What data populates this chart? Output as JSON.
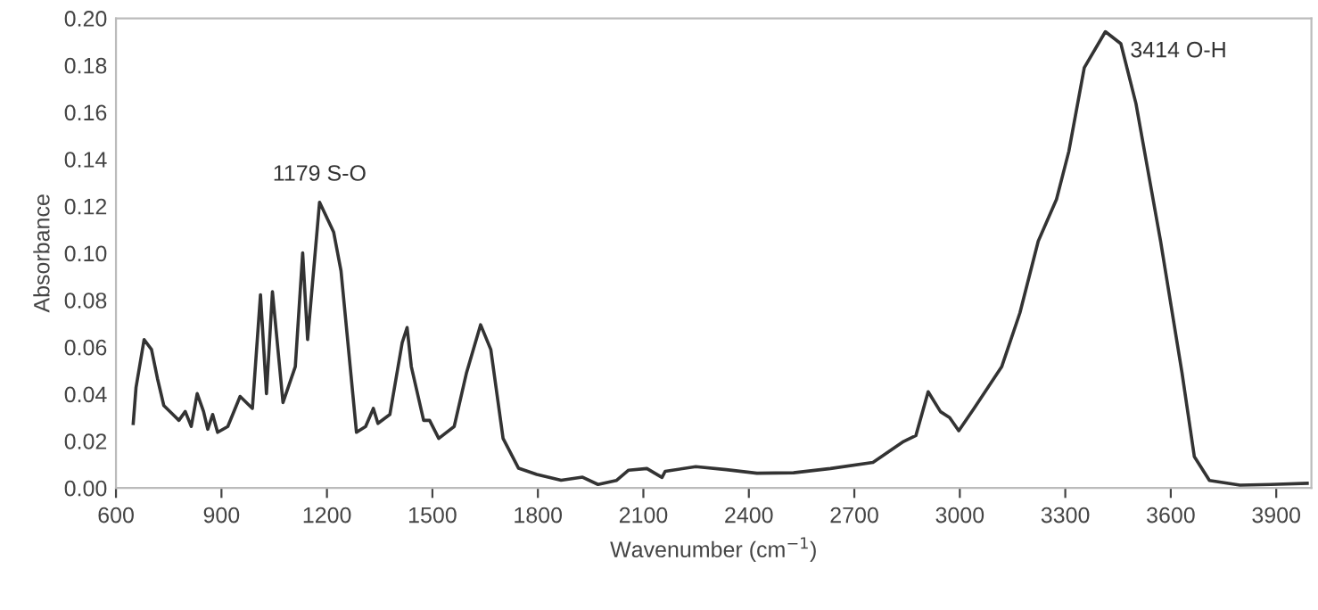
{
  "chart_data": {
    "type": "line",
    "xlabel": "Wavenumber (cm$^{−1}$)",
    "ylabel": "Absorbance",
    "series": [
      {
        "color": "#333333",
        "x": [
          649,
          657,
          680,
          701,
          718,
          736,
          762,
          779,
          797,
          814,
          831,
          849,
          861,
          875,
          889,
          918,
          953,
          988,
          1011,
          1028,
          1045,
          1075,
          1110,
          1131,
          1145,
          1179,
          1219,
          1240,
          1284,
          1310,
          1332,
          1345,
          1379,
          1414,
          1428,
          1440,
          1475,
          1492,
          1518,
          1562,
          1597,
          1637,
          1666,
          1701,
          1745,
          1797,
          1866,
          1927,
          1971,
          2023,
          2058,
          2110,
          2153,
          2162,
          2249,
          2336,
          2423,
          2527,
          2632,
          2753,
          2840,
          2875,
          2910,
          2945,
          2971,
          2997,
          3040,
          3119,
          3171,
          3223,
          3275,
          3310,
          3354,
          3414,
          3458,
          3501,
          3571,
          3632,
          3667,
          3710,
          3797,
          3884,
          3988
        ],
        "values": [
          0.0275,
          0.0428,
          0.0632,
          0.059,
          0.0466,
          0.0351,
          0.0313,
          0.0288,
          0.0326,
          0.0262,
          0.0402,
          0.0326,
          0.025,
          0.0313,
          0.0237,
          0.0262,
          0.039,
          0.0339,
          0.0823,
          0.0402,
          0.0836,
          0.0364,
          0.0517,
          0.1001,
          0.0632,
          0.1217,
          0.109,
          0.0925,
          0.0237,
          0.0262,
          0.0339,
          0.0275,
          0.0313,
          0.0619,
          0.0683,
          0.0517,
          0.0288,
          0.0288,
          0.0211,
          0.0262,
          0.0491,
          0.0695,
          0.059,
          0.0211,
          0.0084,
          0.0058,
          0.0033,
          0.0046,
          0.0015,
          0.0032,
          0.0076,
          0.0083,
          0.0045,
          0.0071,
          0.0091,
          0.0078,
          0.0063,
          0.0065,
          0.0083,
          0.0109,
          0.0198,
          0.0223,
          0.041,
          0.0325,
          0.03,
          0.0244,
          0.0338,
          0.0516,
          0.0746,
          0.1051,
          0.1229,
          0.1433,
          0.179,
          0.1943,
          0.1892,
          0.1637,
          0.1051,
          0.049,
          0.0134,
          0.0032,
          0.0012,
          0.0015,
          0.002
        ]
      }
    ],
    "annotations": [
      {
        "text": "1179 S-O",
        "x": 1179,
        "y": 0.1217
      },
      {
        "text": "3414 O-H",
        "x": 3414,
        "y": 0.1943
      }
    ],
    "xlim": [
      600,
      4000
    ],
    "xticks": [
      600,
      900,
      1200,
      1500,
      1800,
      2100,
      2400,
      2700,
      3000,
      3300,
      3600,
      3900
    ],
    "ylim": [
      0,
      0.2
    ],
    "yticks": [
      {
        "value": 0,
        "label": "0.00"
      },
      {
        "value": 0.02,
        "label": "0.02"
      },
      {
        "value": 0.04,
        "label": "0.04"
      },
      {
        "value": 0.06,
        "label": "0.06"
      },
      {
        "value": 0.08,
        "label": "0.08"
      },
      {
        "value": 0.1,
        "label": "0.10"
      },
      {
        "value": 0.12,
        "label": "0.12"
      },
      {
        "value": 0.14,
        "label": "0.14"
      },
      {
        "value": 0.16,
        "label": "0.16"
      },
      {
        "value": 0.18,
        "label": "0.18"
      },
      {
        "value": 0.2,
        "label": "0.20"
      }
    ],
    "grid": false,
    "marker": "none",
    "line_style": "solid"
  }
}
